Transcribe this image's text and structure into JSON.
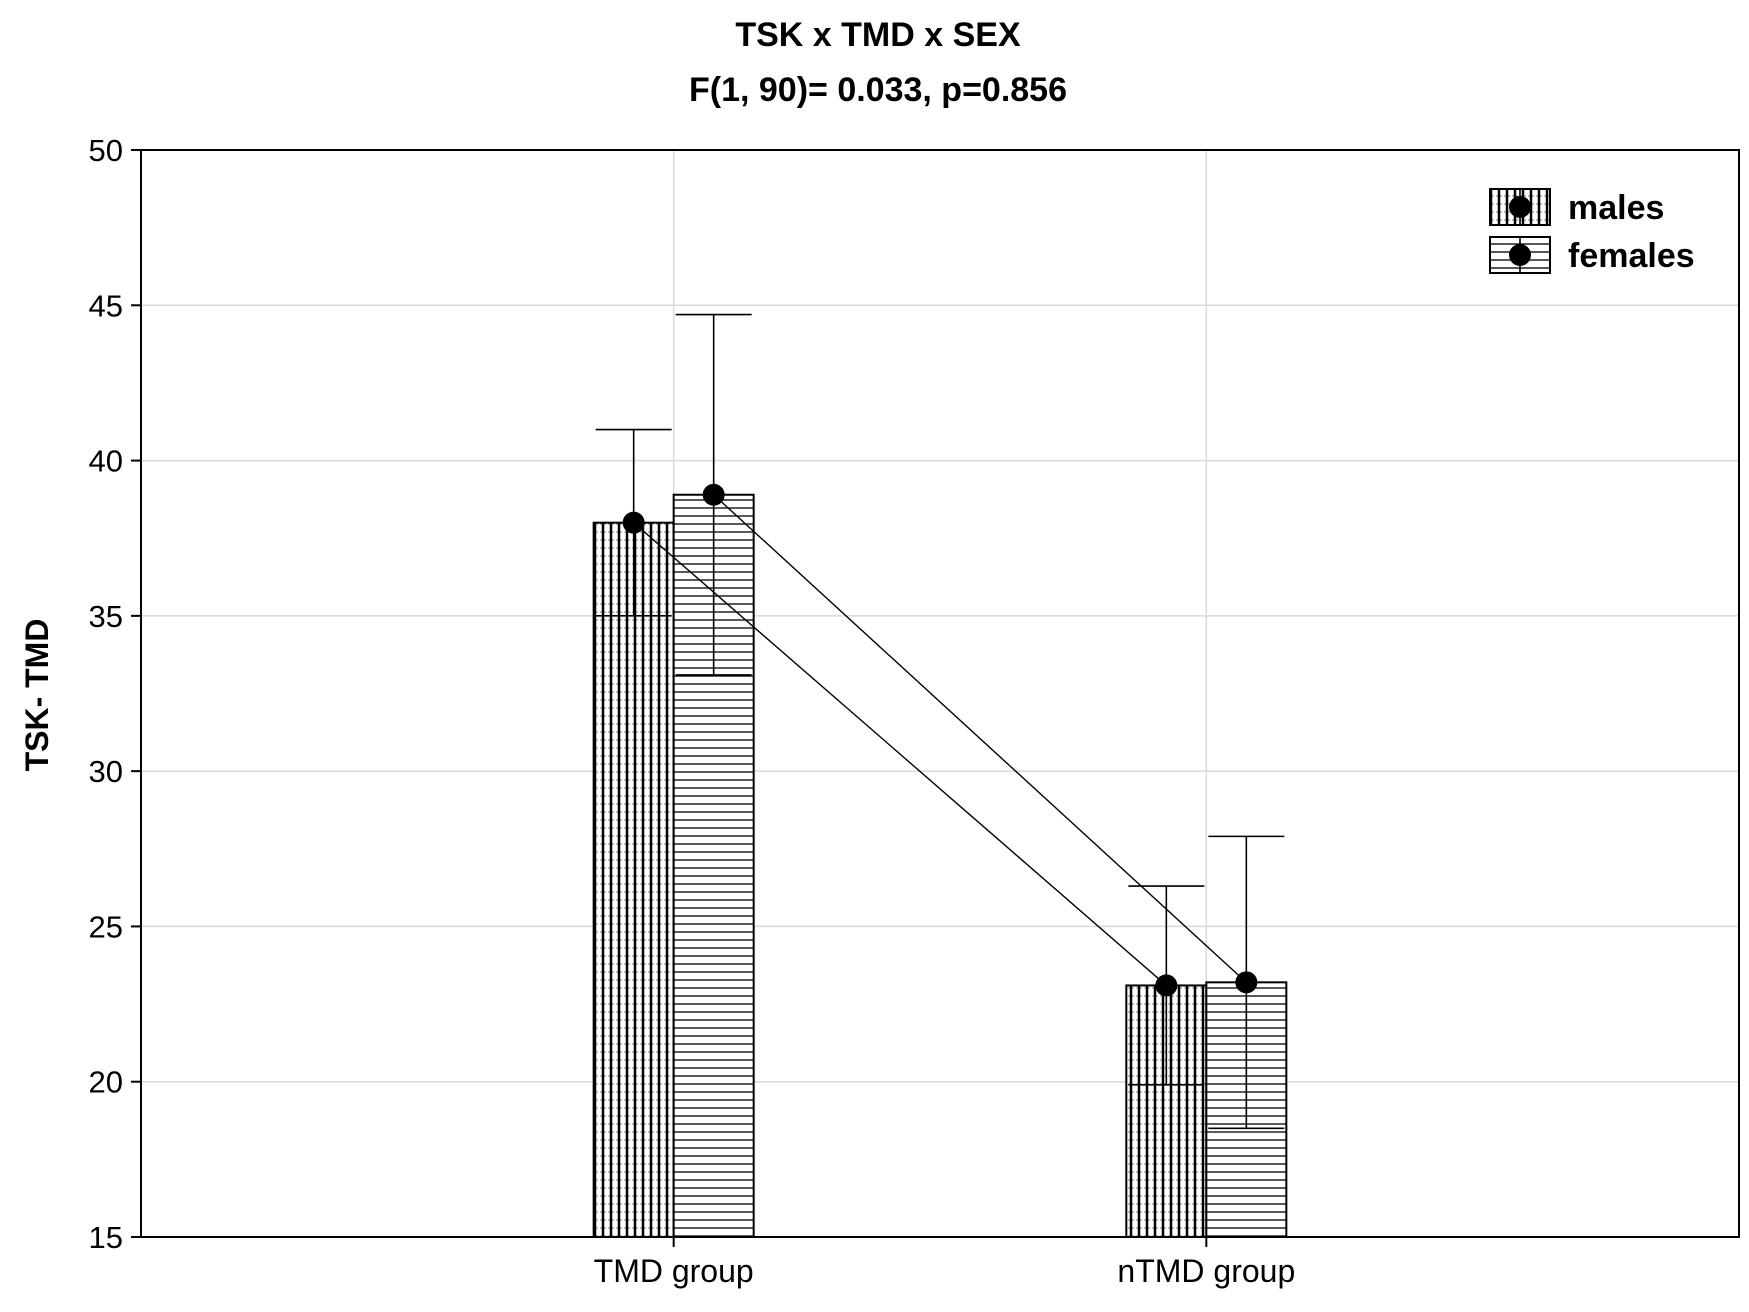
{
  "chart_data": {
    "type": "bar",
    "title": "TSK x TMD x SEX",
    "subtitle": "F(1, 90)= 0.033, p=0.856",
    "xlabel": "",
    "ylabel": "TSK- TMD",
    "ylim": [
      15,
      50
    ],
    "yticks": [
      15,
      20,
      25,
      30,
      35,
      40,
      45,
      50
    ],
    "categories": [
      "TMD group",
      "nTMD group"
    ],
    "series": [
      {
        "name": "males",
        "pattern": "vertical-hatch",
        "values": [
          38.0,
          23.1
        ],
        "error_low": [
          35.0,
          19.9
        ],
        "error_high": [
          41.0,
          26.3
        ]
      },
      {
        "name": "females",
        "pattern": "horizontal-hatch",
        "values": [
          38.9,
          23.2
        ],
        "error_low": [
          33.1,
          18.5
        ],
        "error_high": [
          44.7,
          27.9
        ]
      }
    ],
    "grid": true,
    "legend": "top-right",
    "colors": {
      "bar_fill": "#ffffff",
      "stroke": "#000000",
      "grid": "#d9d9d9"
    }
  }
}
